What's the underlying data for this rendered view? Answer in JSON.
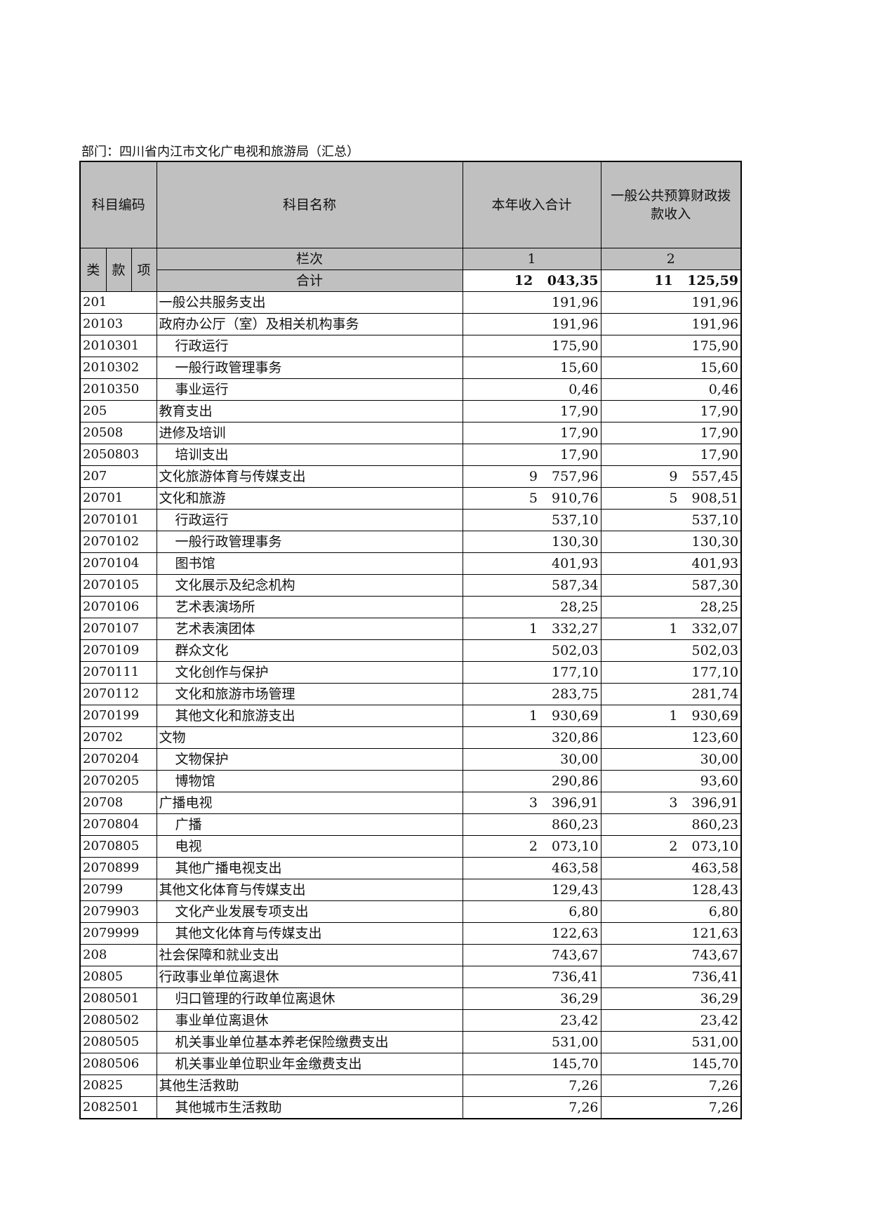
{
  "department_label": "部门：四川省内江市文化广电视和旅游局（汇总）",
  "header": {
    "code": "科目编码",
    "name": "科目名称",
    "col1": "本年收入合计",
    "col2": "一般公共预算财政拨款收入",
    "lei": "类",
    "kuan": "款",
    "xiang": "项",
    "column_order_label": "栏次",
    "col1_no": "1",
    "col2_no": "2",
    "total_label": "合计",
    "total_col1": "12 043,35",
    "total_col2": "11 125,59"
  },
  "rows": [
    {
      "code": "201",
      "name": "一般公共服务支出",
      "c1": "191,96",
      "c2": "191,96"
    },
    {
      "code": "20103",
      "name": "政府办公厅（室）及相关机构事务",
      "c1": "191,96",
      "c2": "191,96"
    },
    {
      "code": "2010301",
      "name": "行政运行",
      "c1": "175,90",
      "c2": "175,90"
    },
    {
      "code": "2010302",
      "name": "一般行政管理事务",
      "c1": "15,60",
      "c2": "15,60"
    },
    {
      "code": "2010350",
      "name": "事业运行",
      "c1": "0,46",
      "c2": "0,46"
    },
    {
      "code": "205",
      "name": "教育支出",
      "c1": "17,90",
      "c2": "17,90"
    },
    {
      "code": "20508",
      "name": "进修及培训",
      "c1": "17,90",
      "c2": "17,90"
    },
    {
      "code": "2050803",
      "name": "培训支出",
      "c1": "17,90",
      "c2": "17,90"
    },
    {
      "code": "207",
      "name": "文化旅游体育与传媒支出",
      "c1": "9 757,96",
      "c2": "9 557,45"
    },
    {
      "code": "20701",
      "name": "文化和旅游",
      "c1": "5 910,76",
      "c2": "5 908,51"
    },
    {
      "code": "2070101",
      "name": "行政运行",
      "c1": "537,10",
      "c2": "537,10"
    },
    {
      "code": "2070102",
      "name": "一般行政管理事务",
      "c1": "130,30",
      "c2": "130,30"
    },
    {
      "code": "2070104",
      "name": "图书馆",
      "c1": "401,93",
      "c2": "401,93"
    },
    {
      "code": "2070105",
      "name": "文化展示及纪念机构",
      "c1": "587,34",
      "c2": "587,30"
    },
    {
      "code": "2070106",
      "name": "艺术表演场所",
      "c1": "28,25",
      "c2": "28,25"
    },
    {
      "code": "2070107",
      "name": "艺术表演团体",
      "c1": "1 332,27",
      "c2": "1 332,07"
    },
    {
      "code": "2070109",
      "name": "群众文化",
      "c1": "502,03",
      "c2": "502,03"
    },
    {
      "code": "2070111",
      "name": "文化创作与保护",
      "c1": "177,10",
      "c2": "177,10"
    },
    {
      "code": "2070112",
      "name": "文化和旅游市场管理",
      "c1": "283,75",
      "c2": "281,74"
    },
    {
      "code": "2070199",
      "name": "其他文化和旅游支出",
      "c1": "1 930,69",
      "c2": "1 930,69"
    },
    {
      "code": "20702",
      "name": "文物",
      "c1": "320,86",
      "c2": "123,60"
    },
    {
      "code": "2070204",
      "name": "文物保护",
      "c1": "30,00",
      "c2": "30,00"
    },
    {
      "code": "2070205",
      "name": "博物馆",
      "c1": "290,86",
      "c2": "93,60"
    },
    {
      "code": "20708",
      "name": "广播电视",
      "c1": "3 396,91",
      "c2": "3 396,91"
    },
    {
      "code": "2070804",
      "name": "广播",
      "c1": "860,23",
      "c2": "860,23"
    },
    {
      "code": "2070805",
      "name": "电视",
      "c1": "2 073,10",
      "c2": "2 073,10"
    },
    {
      "code": "2070899",
      "name": "其他广播电视支出",
      "c1": "463,58",
      "c2": "463,58"
    },
    {
      "code": "20799",
      "name": "其他文化体育与传媒支出",
      "c1": "129,43",
      "c2": "128,43"
    },
    {
      "code": "2079903",
      "name": "文化产业发展专项支出",
      "c1": "6,80",
      "c2": "6,80"
    },
    {
      "code": "2079999",
      "name": "其他文化体育与传媒支出",
      "c1": "122,63",
      "c2": "121,63"
    },
    {
      "code": "208",
      "name": "社会保障和就业支出",
      "c1": "743,67",
      "c2": "743,67"
    },
    {
      "code": "20805",
      "name": "行政事业单位离退休",
      "c1": "736,41",
      "c2": "736,41"
    },
    {
      "code": "2080501",
      "name": "归口管理的行政单位离退休",
      "c1": "36,29",
      "c2": "36,29"
    },
    {
      "code": "2080502",
      "name": "事业单位离退休",
      "c1": "23,42",
      "c2": "23,42"
    },
    {
      "code": "2080505",
      "name": "机关事业单位基本养老保险缴费支出",
      "c1": "531,00",
      "c2": "531,00"
    },
    {
      "code": "2080506",
      "name": "机关事业单位职业年金缴费支出",
      "c1": "145,70",
      "c2": "145,70"
    },
    {
      "code": "20825",
      "name": "其他生活救助",
      "c1": "7,26",
      "c2": "7,26"
    },
    {
      "code": "2082501",
      "name": "其他城市生活救助",
      "c1": "7,26",
      "c2": "7,26"
    }
  ]
}
